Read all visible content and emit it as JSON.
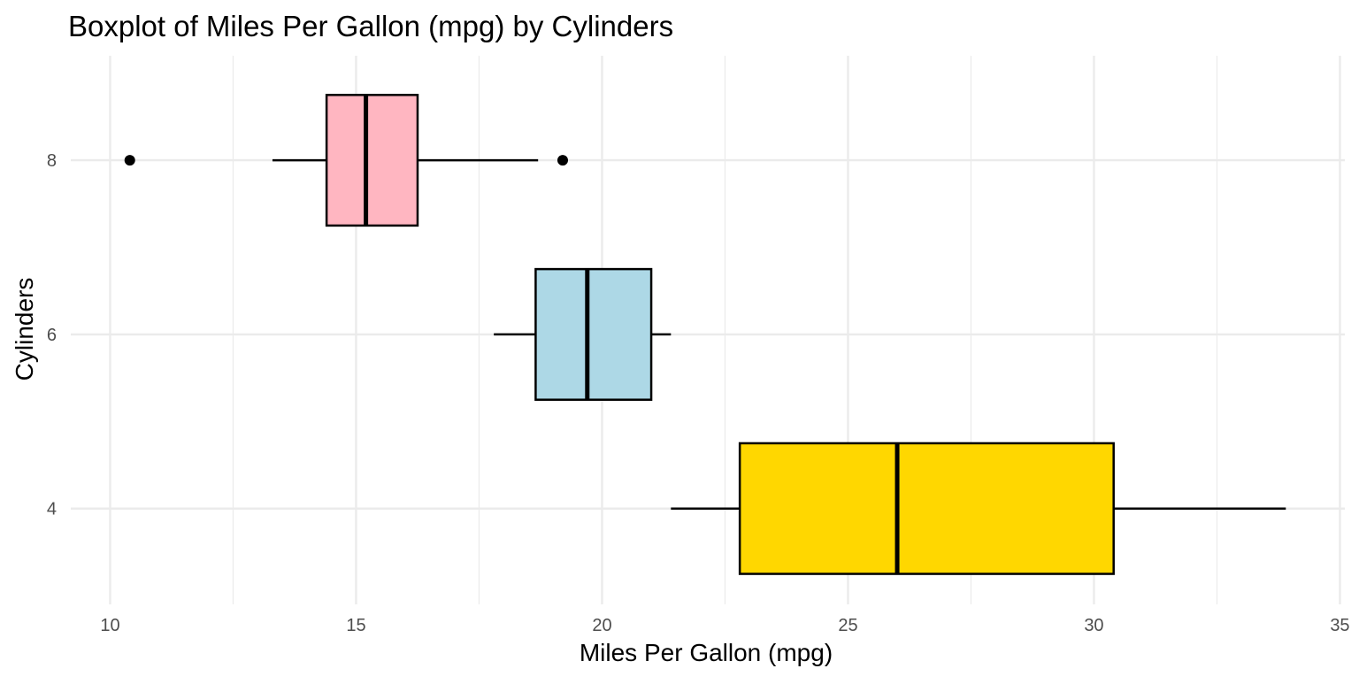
{
  "chart_data": {
    "type": "boxplot",
    "title": "Boxplot of Miles Per Gallon (mpg) by Cylinders",
    "xlabel": "Miles Per Gallon (mpg)",
    "ylabel": "Cylinders",
    "orientation": "horizontal",
    "xlim": [
      9.2,
      35.1
    ],
    "ylim": [
      2.9,
      9.2
    ],
    "x_ticks": [
      10,
      15,
      20,
      25,
      30,
      35
    ],
    "x_minor_ticks": [
      12.5,
      17.5,
      22.5,
      27.5,
      32.5
    ],
    "y_ticks": [
      4,
      6,
      8
    ],
    "grid": true,
    "legend": "none",
    "series": [
      {
        "category": 4,
        "min": 21.4,
        "q1": 22.8,
        "median": 26.0,
        "q3": 30.4,
        "max": 33.9,
        "outliers": [],
        "color": "#FFD700"
      },
      {
        "category": 6,
        "min": 17.8,
        "q1": 18.65,
        "median": 19.7,
        "q3": 21.0,
        "max": 21.4,
        "outliers": [],
        "color": "#ADD8E6"
      },
      {
        "category": 8,
        "min": 13.3,
        "q1": 14.4,
        "median": 15.2,
        "q3": 16.25,
        "max": 18.7,
        "outliers": [
          10.4,
          19.2
        ],
        "color": "#FFB6C1"
      }
    ],
    "colors": {
      "grid": "#EBEBEB",
      "stroke": "#000000",
      "tick_text": "#4D4D4D"
    }
  }
}
